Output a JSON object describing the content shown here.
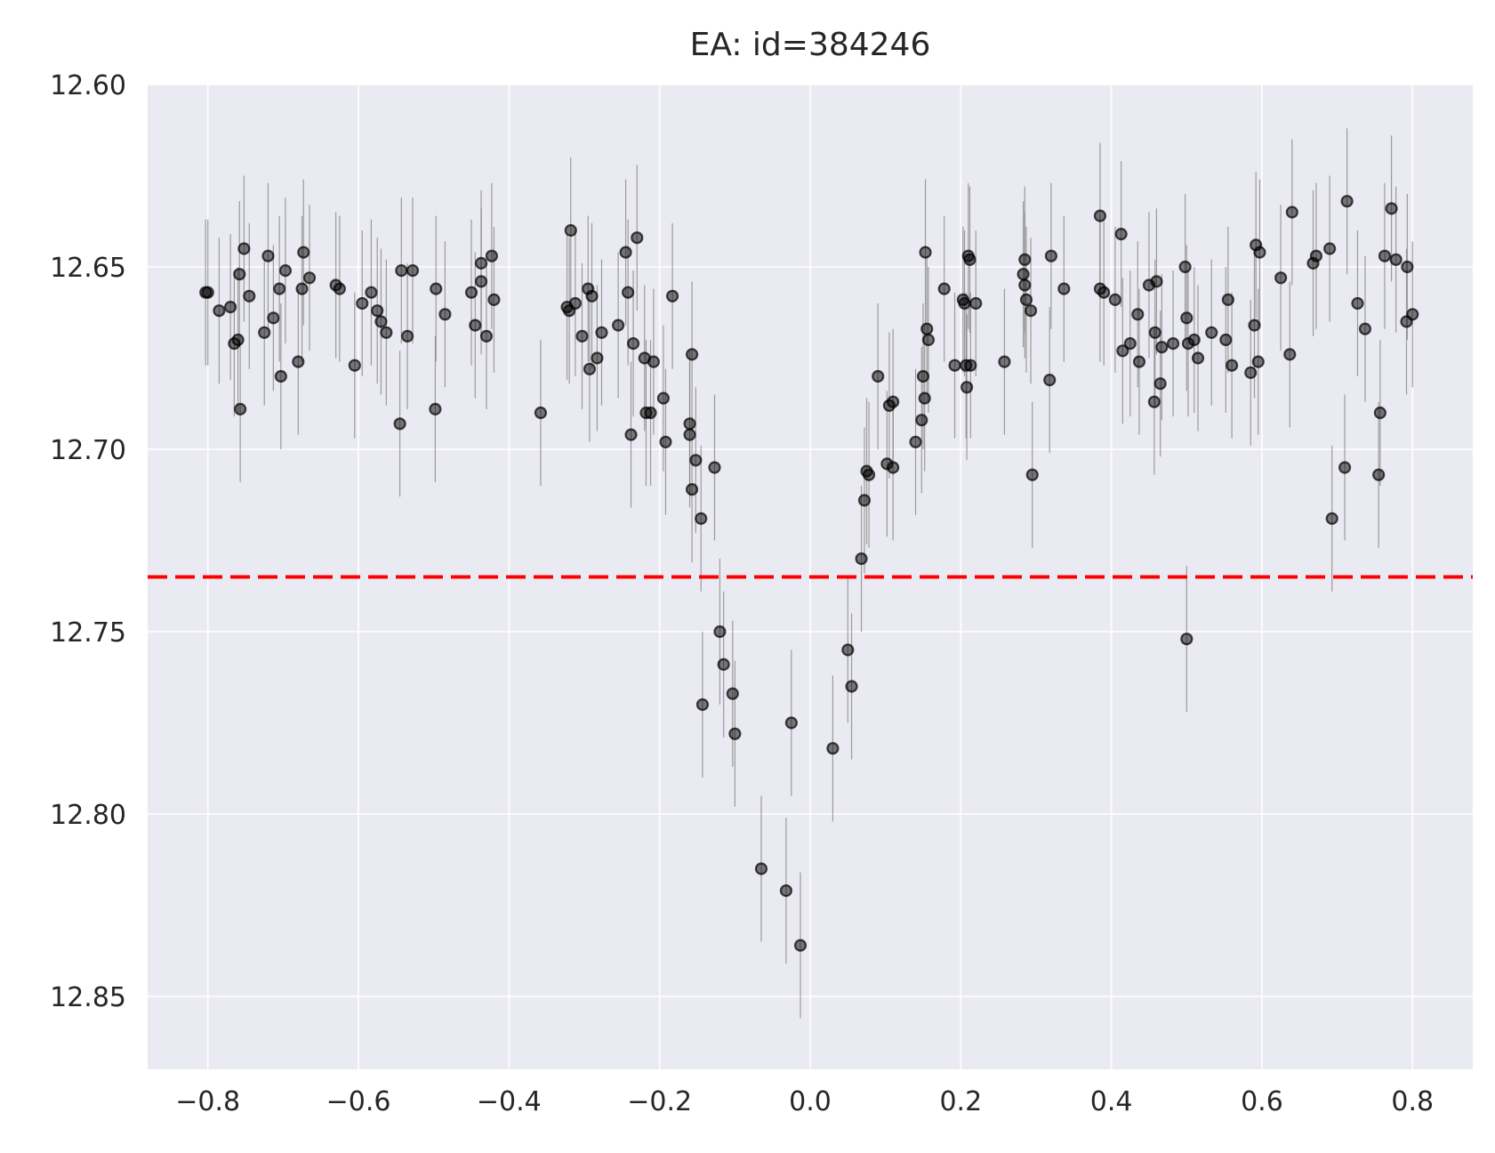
{
  "chart_data": {
    "type": "scatter",
    "title": "EA: id=384246",
    "xlabel": "",
    "ylabel": "",
    "xlim": [
      -0.88,
      0.88
    ],
    "ylim": [
      12.87,
      12.6
    ],
    "y_inverted": true,
    "x_ticks": [
      -0.8,
      -0.6,
      -0.4,
      -0.2,
      0.0,
      0.2,
      0.4,
      0.6,
      0.8
    ],
    "x_tick_labels": [
      "−0.8",
      "−0.6",
      "−0.4",
      "−0.2",
      "0.0",
      "0.2",
      "0.4",
      "0.6",
      "0.8"
    ],
    "y_ticks": [
      12.6,
      12.65,
      12.7,
      12.75,
      12.8,
      12.85
    ],
    "y_tick_labels": [
      "12.60",
      "12.65",
      "12.70",
      "12.75",
      "12.80",
      "12.85"
    ],
    "grid": true,
    "colors": {
      "background": "#eaeaf2",
      "grid": "#ffffff",
      "points": "#000000",
      "errorbars": "#808080",
      "reference_line": "#ff0000"
    },
    "reference_line": {
      "y": 12.735,
      "style": "dashed",
      "color": "#ff0000"
    },
    "series": [
      {
        "points": [
          [
            -0.803,
            12.657,
            0.02
          ],
          [
            -0.8,
            12.657,
            0.02
          ],
          [
            -0.785,
            12.662,
            0.02
          ],
          [
            -0.77,
            12.661,
            0.02
          ],
          [
            -0.765,
            12.671,
            0.02
          ],
          [
            -0.76,
            12.67,
            0.02
          ],
          [
            -0.758,
            12.652,
            0.02
          ],
          [
            -0.757,
            12.689,
            0.02
          ],
          [
            -0.752,
            12.645,
            0.02
          ],
          [
            -0.745,
            12.658,
            0.02
          ],
          [
            -0.725,
            12.668,
            0.02
          ],
          [
            -0.72,
            12.647,
            0.02
          ],
          [
            -0.713,
            12.664,
            0.02
          ],
          [
            -0.705,
            12.656,
            0.02
          ],
          [
            -0.703,
            12.68,
            0.02
          ],
          [
            -0.697,
            12.651,
            0.02
          ],
          [
            -0.68,
            12.676,
            0.02
          ],
          [
            -0.675,
            12.656,
            0.02
          ],
          [
            -0.673,
            12.646,
            0.02
          ],
          [
            -0.665,
            12.653,
            0.02
          ],
          [
            -0.63,
            12.655,
            0.02
          ],
          [
            -0.625,
            12.656,
            0.02
          ],
          [
            -0.605,
            12.677,
            0.02
          ],
          [
            -0.595,
            12.66,
            0.02
          ],
          [
            -0.583,
            12.657,
            0.02
          ],
          [
            -0.575,
            12.662,
            0.02
          ],
          [
            -0.57,
            12.665,
            0.02
          ],
          [
            -0.563,
            12.668,
            0.02
          ],
          [
            -0.545,
            12.693,
            0.02
          ],
          [
            -0.543,
            12.651,
            0.02
          ],
          [
            -0.535,
            12.669,
            0.02
          ],
          [
            -0.528,
            12.651,
            0.02
          ],
          [
            -0.498,
            12.689,
            0.02
          ],
          [
            -0.497,
            12.656,
            0.02
          ],
          [
            -0.485,
            12.663,
            0.02
          ],
          [
            -0.45,
            12.657,
            0.02
          ],
          [
            -0.445,
            12.666,
            0.02
          ],
          [
            -0.437,
            12.654,
            0.02
          ],
          [
            -0.437,
            12.649,
            0.02
          ],
          [
            -0.43,
            12.669,
            0.02
          ],
          [
            -0.423,
            12.647,
            0.02
          ],
          [
            -0.42,
            12.659,
            0.02
          ],
          [
            -0.358,
            12.69,
            0.02
          ],
          [
            -0.323,
            12.661,
            0.02
          ],
          [
            -0.32,
            12.662,
            0.02
          ],
          [
            -0.318,
            12.64,
            0.02
          ],
          [
            -0.312,
            12.66,
            0.02
          ],
          [
            -0.303,
            12.669,
            0.02
          ],
          [
            -0.295,
            12.656,
            0.02
          ],
          [
            -0.293,
            12.678,
            0.02
          ],
          [
            -0.29,
            12.658,
            0.02
          ],
          [
            -0.283,
            12.675,
            0.02
          ],
          [
            -0.277,
            12.668,
            0.02
          ],
          [
            -0.255,
            12.666,
            0.02
          ],
          [
            -0.245,
            12.646,
            0.02
          ],
          [
            -0.242,
            12.657,
            0.02
          ],
          [
            -0.238,
            12.696,
            0.02
          ],
          [
            -0.235,
            12.671,
            0.02
          ],
          [
            -0.23,
            12.642,
            0.02
          ],
          [
            -0.22,
            12.675,
            0.02
          ],
          [
            -0.218,
            12.69,
            0.02
          ],
          [
            -0.212,
            12.69,
            0.02
          ],
          [
            -0.208,
            12.676,
            0.02
          ],
          [
            -0.195,
            12.686,
            0.02
          ],
          [
            -0.192,
            12.698,
            0.02
          ],
          [
            -0.183,
            12.658,
            0.02
          ],
          [
            -0.16,
            12.693,
            0.02
          ],
          [
            -0.16,
            12.696,
            0.02
          ],
          [
            -0.157,
            12.674,
            0.02
          ],
          [
            -0.157,
            12.711,
            0.02
          ],
          [
            -0.152,
            12.703,
            0.02
          ],
          [
            -0.145,
            12.719,
            0.02
          ],
          [
            -0.143,
            12.77,
            0.02
          ],
          [
            -0.127,
            12.705,
            0.02
          ],
          [
            -0.12,
            12.75,
            0.02
          ],
          [
            -0.115,
            12.759,
            0.02
          ],
          [
            -0.103,
            12.767,
            0.02
          ],
          [
            -0.1,
            12.778,
            0.02
          ],
          [
            -0.065,
            12.815,
            0.02
          ],
          [
            -0.032,
            12.821,
            0.02
          ],
          [
            -0.025,
            12.775,
            0.02
          ],
          [
            -0.013,
            12.836,
            0.02
          ],
          [
            0.03,
            12.782,
            0.02
          ],
          [
            0.05,
            12.755,
            0.02
          ],
          [
            0.055,
            12.765,
            0.02
          ],
          [
            0.068,
            12.73,
            0.02
          ],
          [
            0.072,
            12.714,
            0.02
          ],
          [
            0.075,
            12.706,
            0.02
          ],
          [
            0.078,
            12.707,
            0.02
          ],
          [
            0.09,
            12.68,
            0.02
          ],
          [
            0.102,
            12.704,
            0.02
          ],
          [
            0.105,
            12.688,
            0.02
          ],
          [
            0.11,
            12.687,
            0.02
          ],
          [
            0.11,
            12.705,
            0.02
          ],
          [
            0.14,
            12.698,
            0.02
          ],
          [
            0.148,
            12.692,
            0.02
          ],
          [
            0.15,
            12.68,
            0.02
          ],
          [
            0.152,
            12.686,
            0.02
          ],
          [
            0.153,
            12.646,
            0.02
          ],
          [
            0.155,
            12.667,
            0.02
          ],
          [
            0.157,
            12.67,
            0.02
          ],
          [
            0.178,
            12.656,
            0.02
          ],
          [
            0.192,
            12.677,
            0.02
          ],
          [
            0.203,
            12.659,
            0.02
          ],
          [
            0.205,
            12.66,
            0.02
          ],
          [
            0.207,
            12.677,
            0.02
          ],
          [
            0.208,
            12.683,
            0.02
          ],
          [
            0.21,
            12.647,
            0.02
          ],
          [
            0.212,
            12.648,
            0.02
          ],
          [
            0.213,
            12.677,
            0.02
          ],
          [
            0.22,
            12.66,
            0.02
          ],
          [
            0.258,
            12.676,
            0.02
          ],
          [
            0.283,
            12.652,
            0.02
          ],
          [
            0.285,
            12.655,
            0.02
          ],
          [
            0.285,
            12.648,
            0.02
          ],
          [
            0.287,
            12.659,
            0.02
          ],
          [
            0.293,
            12.662,
            0.02
          ],
          [
            0.295,
            12.707,
            0.02
          ],
          [
            0.318,
            12.681,
            0.02
          ],
          [
            0.32,
            12.647,
            0.02
          ],
          [
            0.337,
            12.656,
            0.02
          ],
          [
            0.385,
            12.656,
            0.02
          ],
          [
            0.385,
            12.636,
            0.02
          ],
          [
            0.39,
            12.657,
            0.02
          ],
          [
            0.405,
            12.659,
            0.02
          ],
          [
            0.413,
            12.641,
            0.02
          ],
          [
            0.415,
            12.673,
            0.02
          ],
          [
            0.425,
            12.671,
            0.02
          ],
          [
            0.435,
            12.663,
            0.02
          ],
          [
            0.437,
            12.676,
            0.02
          ],
          [
            0.45,
            12.655,
            0.02
          ],
          [
            0.457,
            12.687,
            0.02
          ],
          [
            0.458,
            12.668,
            0.02
          ],
          [
            0.46,
            12.654,
            0.02
          ],
          [
            0.465,
            12.682,
            0.02
          ],
          [
            0.467,
            12.672,
            0.02
          ],
          [
            0.482,
            12.671,
            0.02
          ],
          [
            0.498,
            12.65,
            0.02
          ],
          [
            0.5,
            12.664,
            0.02
          ],
          [
            0.502,
            12.671,
            0.02
          ],
          [
            0.5,
            12.752,
            0.02
          ],
          [
            0.51,
            12.67,
            0.02
          ],
          [
            0.515,
            12.675,
            0.02
          ],
          [
            0.533,
            12.668,
            0.02
          ],
          [
            0.552,
            12.67,
            0.02
          ],
          [
            0.555,
            12.659,
            0.02
          ],
          [
            0.56,
            12.677,
            0.02
          ],
          [
            0.585,
            12.679,
            0.02
          ],
          [
            0.59,
            12.666,
            0.02
          ],
          [
            0.592,
            12.644,
            0.02
          ],
          [
            0.595,
            12.676,
            0.02
          ],
          [
            0.597,
            12.646,
            0.02
          ],
          [
            0.625,
            12.653,
            0.02
          ],
          [
            0.637,
            12.674,
            0.02
          ],
          [
            0.64,
            12.635,
            0.02
          ],
          [
            0.668,
            12.649,
            0.02
          ],
          [
            0.672,
            12.647,
            0.02
          ],
          [
            0.69,
            12.645,
            0.02
          ],
          [
            0.693,
            12.719,
            0.02
          ],
          [
            0.71,
            12.705,
            0.02
          ],
          [
            0.713,
            12.632,
            0.02
          ],
          [
            0.727,
            12.66,
            0.02
          ],
          [
            0.737,
            12.667,
            0.02
          ],
          [
            0.755,
            12.707,
            0.02
          ],
          [
            0.757,
            12.69,
            0.02
          ],
          [
            0.763,
            12.647,
            0.02
          ],
          [
            0.772,
            12.634,
            0.02
          ],
          [
            0.778,
            12.648,
            0.02
          ],
          [
            0.792,
            12.665,
            0.02
          ],
          [
            0.793,
            12.65,
            0.02
          ],
          [
            0.8,
            12.663,
            0.02
          ]
        ]
      }
    ]
  }
}
